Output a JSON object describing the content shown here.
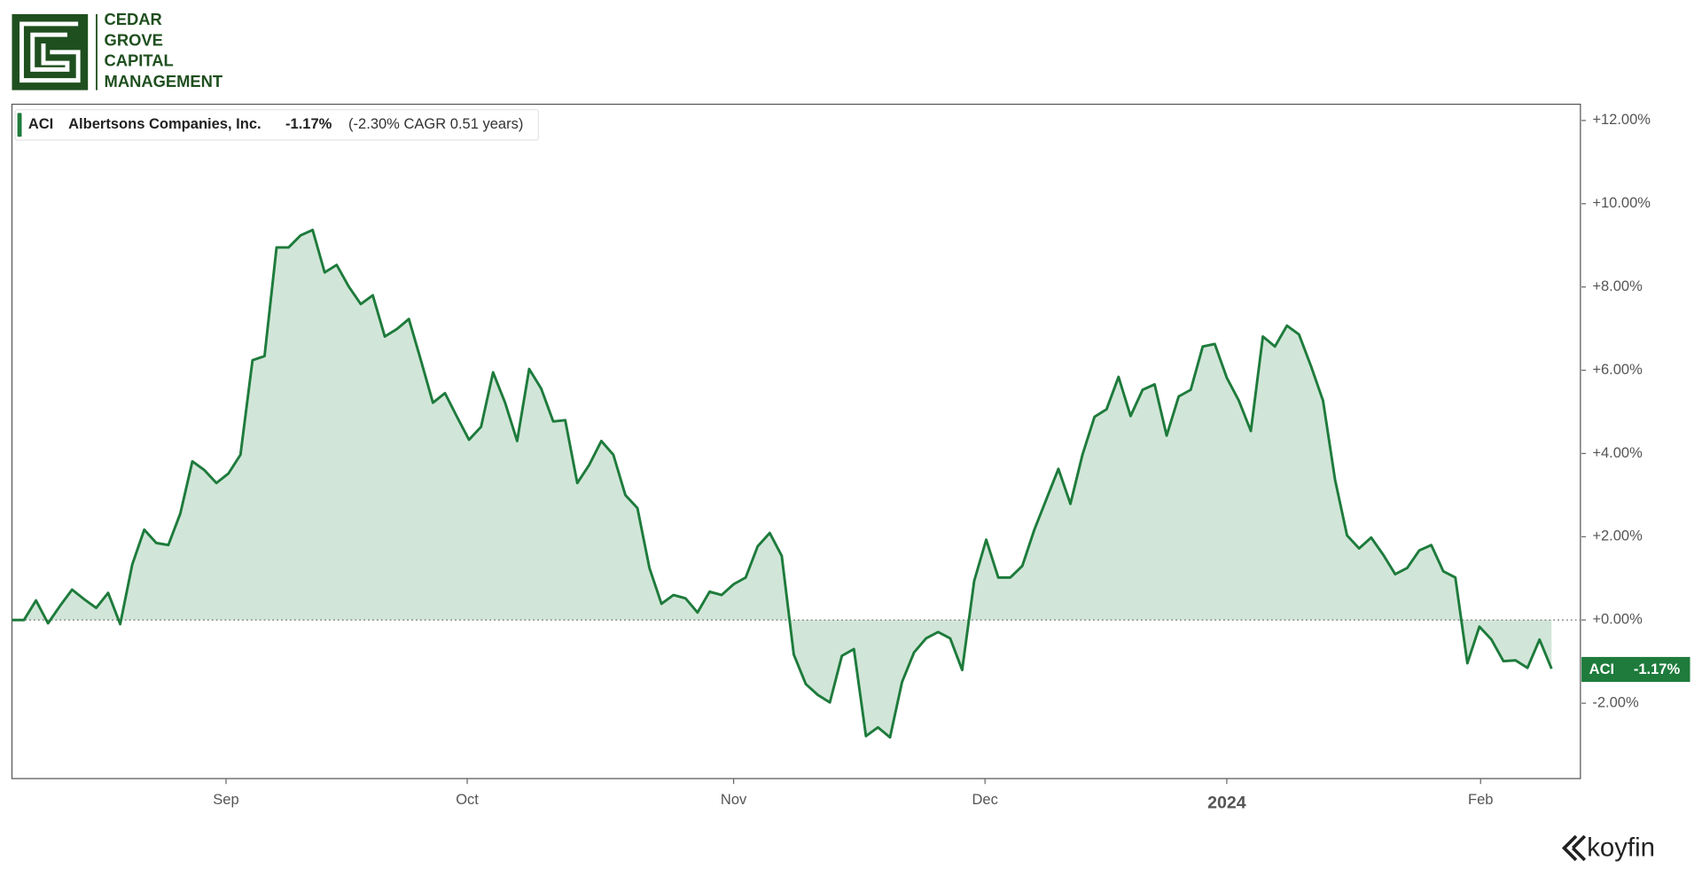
{
  "brand": {
    "lines": [
      "CEDAR",
      "GROVE",
      "CAPITAL",
      "MANAGEMENT"
    ],
    "watermark": "koyfin"
  },
  "chart_data": {
    "type": "area",
    "series": [
      {
        "name": "ACI",
        "full_name": "Albertsons Companies, Inc.",
        "change_label": "-1.17%",
        "cagr_label": "(-2.30% CAGR 0.51 years)",
        "color": "#1e7b3c",
        "fill": "#d1e6d8",
        "values": [
          0,
          0,
          0.47,
          -0.08,
          0.34,
          0.73,
          0.5,
          0.29,
          0.65,
          -0.1,
          1.33,
          2.17,
          1.85,
          1.8,
          2.56,
          3.81,
          3.6,
          3.29,
          3.52,
          3.97,
          6.24,
          6.34,
          8.95,
          8.95,
          9.24,
          9.37,
          8.35,
          8.53,
          8.01,
          7.59,
          7.8,
          6.81,
          6.99,
          7.23,
          6.24,
          5.22,
          5.45,
          4.88,
          4.33,
          4.64,
          5.95,
          5.22,
          4.3,
          6.03,
          5.56,
          4.77,
          4.8,
          3.29,
          3.73,
          4.3,
          3.97,
          3.0,
          2.69,
          1.25,
          0.39,
          0.6,
          0.52,
          0.18,
          0.68,
          0.6,
          0.86,
          1.02,
          1.77,
          2.09,
          1.54,
          -0.83,
          -1.54,
          -1.8,
          -1.98,
          -0.86,
          -0.7,
          -2.79,
          -2.58,
          -2.82,
          -1.49,
          -0.78,
          -0.44,
          -0.29,
          -0.44,
          -1.2,
          0.94,
          1.93,
          1.02,
          1.02,
          1.3,
          2.17,
          2.9,
          3.63,
          2.79,
          3.97,
          4.88,
          5.06,
          5.84,
          4.9,
          5.53,
          5.66,
          4.43,
          5.37,
          5.53,
          6.57,
          6.63,
          5.82,
          5.27,
          4.54,
          6.81,
          6.57,
          7.07,
          6.86,
          6.1,
          5.27,
          3.37,
          2.03,
          1.72,
          1.98,
          1.57,
          1.1,
          1.25,
          1.67,
          1.8,
          1.17,
          1.02,
          -1.04,
          -0.16,
          -0.47,
          -0.99,
          -0.97,
          -1.15,
          -0.47,
          -1.17
        ]
      }
    ],
    "xlim": [
      0,
      130.4
    ],
    "xticks": [
      {
        "value": 17.8,
        "label": "Sep"
      },
      {
        "value": 37.85,
        "label": "Oct"
      },
      {
        "value": 60,
        "label": "Nov"
      },
      {
        "value": 80.9,
        "label": "Dec"
      },
      {
        "value": 101,
        "label": "2024"
      },
      {
        "value": 122.1,
        "label": "Feb"
      }
    ],
    "ylim": [
      -3.81,
      12.39
    ],
    "yticks": [
      {
        "value": -2,
        "label": "-2.00%"
      },
      {
        "value": 0,
        "label": "+0.00%"
      },
      {
        "value": 2,
        "label": "+2.00%"
      },
      {
        "value": 4,
        "label": "+4.00%"
      },
      {
        "value": 6,
        "label": "+6.00%"
      },
      {
        "value": 8,
        "label": "+8.00%"
      },
      {
        "value": 10,
        "label": "+10.00%"
      },
      {
        "value": 12,
        "label": "+12.00%"
      }
    ]
  }
}
